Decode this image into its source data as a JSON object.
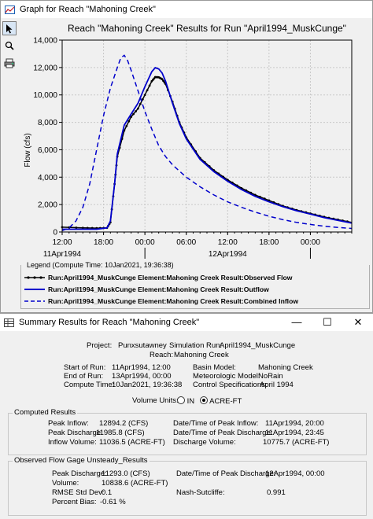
{
  "graph_window": {
    "title": "Graph for Reach \"Mahoning Creek\"",
    "controls": {
      "minimize": "—",
      "maximize": "☐",
      "close": "✕"
    },
    "tools": [
      "pointer-icon",
      "zoom-icon",
      "print-icon"
    ]
  },
  "chart_data": {
    "type": "line",
    "title": "Reach \"Mahoning Creek\" Results for Run \"April1994_MuskCunge\"",
    "ylabel": "Flow (cfs)",
    "ylim": [
      0,
      14000
    ],
    "y_ticks": [
      "0",
      "2,000",
      "4,000",
      "6,000",
      "8,000",
      "10,000",
      "12,000",
      "14,000"
    ],
    "x_ticks": [
      "12:00",
      "18:00",
      "00:00",
      "06:00",
      "12:00",
      "18:00",
      "00:00"
    ],
    "x_dates": [
      "11Apr1994",
      "12Apr1994"
    ],
    "x_hours": [
      0,
      42
    ],
    "grid": true,
    "series": [
      {
        "name": "Run:April1994_MuskCunge Element:Mahoning Creek Result:Observed Flow",
        "color": "#000000",
        "style": "solid-marker",
        "points": [
          [
            0,
            350
          ],
          [
            3,
            300
          ],
          [
            5,
            280
          ],
          [
            6.5,
            300
          ],
          [
            7,
            700
          ],
          [
            7.6,
            3500
          ],
          [
            8,
            5500
          ],
          [
            9,
            7400
          ],
          [
            10,
            8400
          ],
          [
            11,
            9000
          ],
          [
            12,
            10000
          ],
          [
            13,
            11000
          ],
          [
            13.5,
            11300
          ],
          [
            14,
            11290
          ],
          [
            14.5,
            11150
          ],
          [
            15,
            10800
          ],
          [
            16,
            9500
          ],
          [
            17,
            8000
          ],
          [
            18,
            6900
          ],
          [
            20,
            5400
          ],
          [
            22,
            4500
          ],
          [
            24,
            3800
          ],
          [
            26,
            3200
          ],
          [
            28,
            2700
          ],
          [
            30,
            2300
          ],
          [
            32,
            1900
          ],
          [
            34,
            1600
          ],
          [
            36,
            1350
          ],
          [
            38,
            1100
          ],
          [
            40,
            900
          ],
          [
            42,
            700
          ]
        ]
      },
      {
        "name": "Run:April1994_MuskCunge Element:Mahoning Creek Result:Outflow",
        "color": "#0000cc",
        "style": "solid",
        "points": [
          [
            0,
            200
          ],
          [
            5,
            200
          ],
          [
            6.5,
            300
          ],
          [
            7,
            800
          ],
          [
            7.6,
            3500
          ],
          [
            8,
            5700
          ],
          [
            9,
            7800
          ],
          [
            10,
            8600
          ],
          [
            11,
            9400
          ],
          [
            12,
            10600
          ],
          [
            13,
            11700
          ],
          [
            13.5,
            11986
          ],
          [
            14,
            11900
          ],
          [
            14.5,
            11600
          ],
          [
            15,
            11000
          ],
          [
            16,
            9400
          ],
          [
            17,
            7900
          ],
          [
            18,
            6800
          ],
          [
            20,
            5300
          ],
          [
            22,
            4400
          ],
          [
            24,
            3700
          ],
          [
            26,
            3100
          ],
          [
            28,
            2600
          ],
          [
            30,
            2200
          ],
          [
            32,
            1850
          ],
          [
            34,
            1550
          ],
          [
            36,
            1300
          ],
          [
            38,
            1050
          ],
          [
            40,
            850
          ],
          [
            42,
            650
          ]
        ]
      },
      {
        "name": "Run:April1994_MuskCunge Element:Mahoning Creek Result:Combined Inflow",
        "color": "#0000cc",
        "style": "dashed",
        "points": [
          [
            0,
            100
          ],
          [
            1,
            300
          ],
          [
            2,
            800
          ],
          [
            3,
            1800
          ],
          [
            4,
            3500
          ],
          [
            5,
            6000
          ],
          [
            6,
            8500
          ],
          [
            7,
            10500
          ],
          [
            8,
            12000
          ],
          [
            8.5,
            12700
          ],
          [
            9,
            12894
          ],
          [
            9.5,
            12500
          ],
          [
            10,
            11800
          ],
          [
            11,
            10300
          ],
          [
            12,
            8800
          ],
          [
            13,
            7500
          ],
          [
            14,
            6300
          ],
          [
            15,
            5500
          ],
          [
            16,
            4900
          ],
          [
            18,
            4000
          ],
          [
            20,
            3300
          ],
          [
            22,
            2700
          ],
          [
            24,
            2200
          ],
          [
            26,
            1800
          ],
          [
            28,
            1450
          ],
          [
            30,
            1150
          ],
          [
            32,
            900
          ],
          [
            34,
            700
          ],
          [
            36,
            550
          ],
          [
            38,
            420
          ],
          [
            40,
            330
          ],
          [
            42,
            260
          ]
        ]
      }
    ]
  },
  "legend": {
    "caption": "Legend (Compute Time: 10Jan2021, 19:36:38)"
  },
  "summary_window": {
    "title": "Summary Results for Reach \"Mahoning Creek\"",
    "controls": {
      "minimize": "—",
      "maximize": "☐",
      "close": "✕"
    },
    "project_label": "Project:",
    "project_value": "Punxsutawney",
    "sim_label": "Simulation Run:",
    "sim_value": "April1994_MuskCunge",
    "reach_label": "Reach:",
    "reach_value": "Mahoning Creek",
    "start_label": "Start of Run:",
    "start_value": "11Apr1994, 12:00",
    "end_label": "End of Run:",
    "end_value": "13Apr1994, 00:00",
    "compute_label": "Compute Time:",
    "compute_value": "10Jan2021, 19:36:38",
    "basin_label": "Basin Model:",
    "basin_value": "Mahoning Creek",
    "met_label": "Meteorologic Model:",
    "met_value": "NoRain",
    "ctrl_label": "Control Specifications:",
    "ctrl_value": "April 1994",
    "units_label": "Volume Units:",
    "unit_in": "IN",
    "unit_acre": "ACRE-FT",
    "computed": {
      "caption": "Computed Results",
      "peak_inflow_label": "Peak Inflow:",
      "peak_inflow_value": "12894.2 (CFS)",
      "peak_discharge_label": "Peak Discharge:",
      "peak_discharge_value": "11985.8 (CFS)",
      "inflow_volume_label": "Inflow Volume:",
      "inflow_volume_value": "11036.5 (ACRE-FT)",
      "peak_inflow_time_label": "Date/Time of Peak Inflow:",
      "peak_inflow_time_value": "11Apr1994, 20:00",
      "peak_discharge_time_label": "Date/Time of Peak Discharge:",
      "peak_discharge_time_value": "11Apr1994, 23:45",
      "discharge_volume_label": "Discharge Volume:",
      "discharge_volume_value": "10775.7 (ACRE-FT)"
    },
    "observed": {
      "caption": "Observed Flow Gage Unsteady_Results",
      "peak_discharge_label": "Peak Discharge:",
      "peak_discharge_value": "11293.0 (CFS)",
      "volume_label": "Volume:",
      "volume_value": "10838.6 (ACRE-FT)",
      "rmse_label": "RMSE Std Dev:",
      "rmse_value": "0.1",
      "bias_label": "Percent Bias:",
      "bias_value": "-0.61 %",
      "peak_time_label": "Date/Time of Peak Discharge:",
      "peak_time_value": "12Apr1994, 00:00",
      "nash_label": "Nash-Sutcliffe:",
      "nash_value": "0.991"
    }
  }
}
